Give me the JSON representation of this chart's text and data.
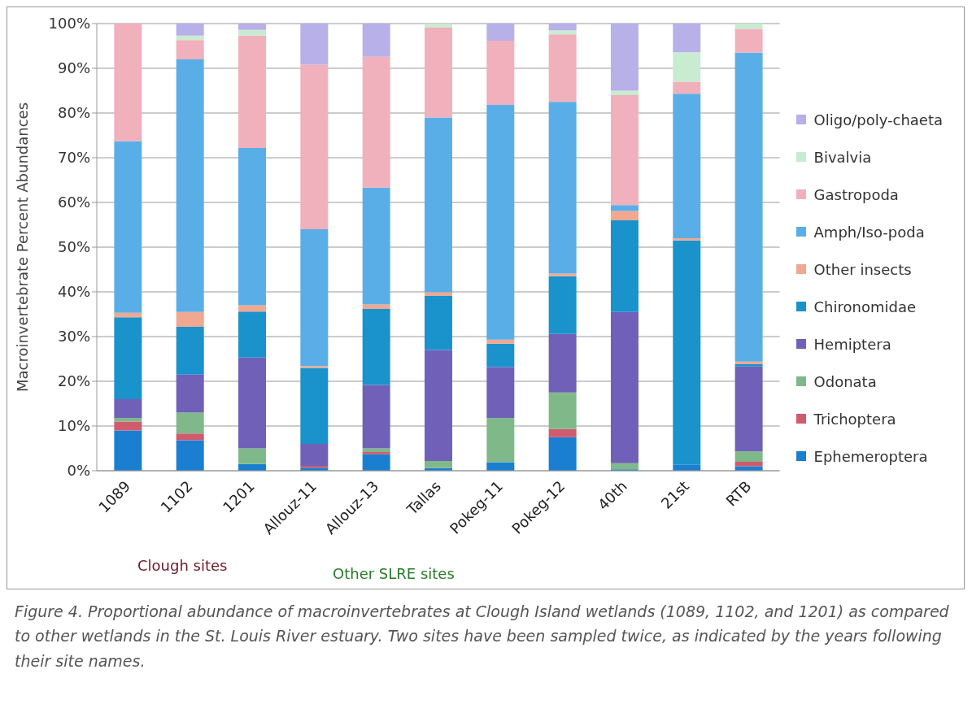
{
  "chart_data": {
    "type": "bar",
    "stacked": true,
    "ylabel": "Macroinvertebrate Percent Abundances",
    "categories": [
      "1089",
      "1102",
      "1201",
      "Allouz-11",
      "Allouz-13",
      "Tallas",
      "Pokeg-11",
      "Pokeg-12",
      "40th",
      "21st",
      "RTB"
    ],
    "series": [
      {
        "name": "Ephemeroptera",
        "color": "#1a7fd0",
        "values": [
          9,
          6.8,
          1.5,
          0.7,
          3.7,
          0.6,
          1.9,
          7.5,
          0.3,
          1.3,
          1
        ]
      },
      {
        "name": "Trichoptera",
        "color": "#d05a6e",
        "values": [
          2,
          1.5,
          0,
          0.4,
          0.5,
          0,
          0,
          1.8,
          0,
          0,
          1
        ]
      },
      {
        "name": "Odonata",
        "color": "#7fb98a",
        "values": [
          0.8,
          4.7,
          3.5,
          0,
          0.8,
          1.6,
          9.9,
          8.2,
          1.4,
          0,
          2.3
        ]
      },
      {
        "name": "Hemiptera",
        "color": "#7060b8",
        "values": [
          4.2,
          8.5,
          20.3,
          4.9,
          14.2,
          24.8,
          11.4,
          13.1,
          33.8,
          0,
          19
        ]
      },
      {
        "name": "Chironomidae",
        "color": "#1a92cc",
        "values": [
          18.3,
          10.7,
          10.3,
          17,
          17,
          12.1,
          5.2,
          12.9,
          20.5,
          50.2,
          0.5
        ]
      },
      {
        "name": "Other insects",
        "color": "#f0a890",
        "values": [
          1,
          3.3,
          1.4,
          0.4,
          1,
          0.8,
          0.9,
          0.6,
          2.1,
          0.5,
          0.6
        ]
      },
      {
        "name": "Amph/Iso-poda",
        "color": "#5aaee8",
        "values": [
          38.4,
          56.5,
          35.2,
          30.6,
          26.1,
          39.1,
          52.5,
          38.4,
          1.3,
          32.3,
          69.1
        ]
      },
      {
        "name": "Gastropoda",
        "color": "#f0b0bc",
        "values": [
          26.3,
          4.3,
          25.1,
          36.8,
          29.3,
          20.2,
          14.4,
          15.1,
          24.6,
          2.7,
          5.3
        ]
      },
      {
        "name": "Bivalvia",
        "color": "#c8ecd0",
        "values": [
          0,
          1,
          1.3,
          null,
          0,
          0.8,
          0,
          0.9,
          1,
          6.6,
          1.2
        ]
      },
      {
        "name": "Oligo/poly-chaeta",
        "color": "#b8b0e8",
        "values": [
          0,
          2.7,
          1.4,
          9.2,
          7.4,
          0,
          3.8,
          1.5,
          15,
          6.4,
          0
        ]
      }
    ],
    "ylim": [
      0,
      100
    ],
    "yticks": [
      {
        "value": 0,
        "label": "0%"
      },
      {
        "value": 10,
        "label": "10%"
      },
      {
        "value": 20,
        "label": "20%"
      },
      {
        "value": 30,
        "label": "30%"
      },
      {
        "value": 40,
        "label": "40%"
      },
      {
        "value": 50,
        "label": "50%"
      },
      {
        "value": 60,
        "label": "60%"
      },
      {
        "value": 70,
        "label": "70%"
      },
      {
        "value": 80,
        "label": "80%"
      },
      {
        "value": 90,
        "label": "90%"
      },
      {
        "value": 100,
        "label": "100%"
      }
    ],
    "grid": "y",
    "legend": "right",
    "annotations": [
      "Clough sites",
      "Other SLRE sites",
      "Figure 4. Proportional abundance of macroinvertebrates at Clough Island wetlands (1089, 1102, and 1201) as compared to other wetlands in the St. Louis River estuary. Two sites have been sampled twice, as indicated by the years following their site names."
    ]
  }
}
